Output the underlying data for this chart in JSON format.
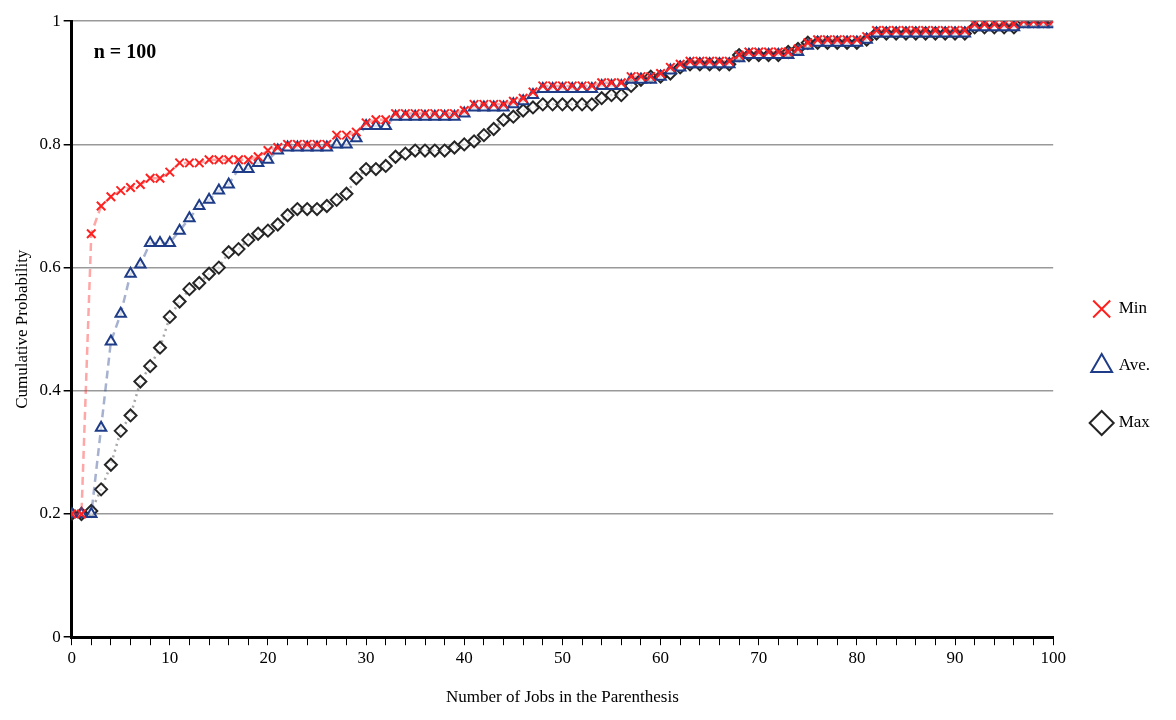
{
  "chart_data": {
    "type": "line",
    "xlabel": "Number of Jobs in the Parenthesis",
    "ylabel": "Cumulative Probability",
    "annotations": [
      "n = 100"
    ],
    "x": [
      0,
      1,
      2,
      3,
      4,
      5,
      6,
      7,
      8,
      9,
      10,
      11,
      12,
      13,
      14,
      15,
      16,
      17,
      18,
      19,
      20,
      21,
      22,
      23,
      24,
      25,
      26,
      27,
      28,
      29,
      30,
      31,
      32,
      33,
      34,
      35,
      36,
      37,
      38,
      39,
      40,
      41,
      42,
      43,
      44,
      45,
      46,
      47,
      48,
      49,
      50,
      51,
      52,
      53,
      54,
      55,
      56,
      57,
      58,
      59,
      60,
      61,
      62,
      63,
      64,
      65,
      66,
      67,
      68,
      69,
      70,
      71,
      72,
      73,
      74,
      75,
      76,
      77,
      78,
      79,
      80,
      81,
      82,
      83,
      84,
      85,
      86,
      87,
      88,
      89,
      90,
      91,
      92,
      93,
      94,
      95,
      96,
      97,
      98,
      99,
      100
    ],
    "series": [
      {
        "name": "Min",
        "color": "#ff2020",
        "marker": "cross",
        "line_style": "dashed",
        "values": [
          0.2,
          0.2,
          0.655,
          0.7,
          0.715,
          0.725,
          0.73,
          0.735,
          0.745,
          0.745,
          0.755,
          0.77,
          0.77,
          0.77,
          0.775,
          0.775,
          0.775,
          0.775,
          0.775,
          0.78,
          0.79,
          0.795,
          0.8,
          0.8,
          0.8,
          0.8,
          0.8,
          0.815,
          0.815,
          0.82,
          0.835,
          0.84,
          0.84,
          0.85,
          0.85,
          0.85,
          0.85,
          0.85,
          0.85,
          0.85,
          0.855,
          0.865,
          0.865,
          0.865,
          0.865,
          0.87,
          0.875,
          0.885,
          0.895,
          0.895,
          0.895,
          0.895,
          0.895,
          0.895,
          0.9,
          0.9,
          0.9,
          0.91,
          0.91,
          0.91,
          0.915,
          0.925,
          0.93,
          0.935,
          0.935,
          0.935,
          0.935,
          0.935,
          0.945,
          0.95,
          0.95,
          0.95,
          0.95,
          0.95,
          0.955,
          0.965,
          0.97,
          0.97,
          0.97,
          0.97,
          0.97,
          0.975,
          0.985,
          0.985,
          0.985,
          0.985,
          0.985,
          0.985,
          0.985,
          0.985,
          0.985,
          0.985,
          0.995,
          0.995,
          0.995,
          0.995,
          0.995,
          1.0,
          1.0,
          1.0,
          1.0
        ]
      },
      {
        "name": "Ave.",
        "color": "#1f3c88",
        "marker": "triangle",
        "line_style": "dashed",
        "values": [
          0.2,
          0.2,
          0.2,
          0.34,
          0.48,
          0.525,
          0.59,
          0.605,
          0.64,
          0.64,
          0.64,
          0.66,
          0.68,
          0.7,
          0.71,
          0.725,
          0.735,
          0.76,
          0.76,
          0.77,
          0.775,
          0.79,
          0.795,
          0.795,
          0.795,
          0.795,
          0.795,
          0.8,
          0.8,
          0.81,
          0.83,
          0.83,
          0.83,
          0.845,
          0.845,
          0.845,
          0.845,
          0.845,
          0.845,
          0.845,
          0.85,
          0.86,
          0.86,
          0.86,
          0.86,
          0.865,
          0.87,
          0.88,
          0.89,
          0.89,
          0.89,
          0.89,
          0.89,
          0.89,
          0.895,
          0.895,
          0.895,
          0.905,
          0.905,
          0.905,
          0.91,
          0.92,
          0.925,
          0.93,
          0.93,
          0.93,
          0.93,
          0.93,
          0.94,
          0.945,
          0.945,
          0.945,
          0.945,
          0.945,
          0.95,
          0.96,
          0.965,
          0.965,
          0.965,
          0.965,
          0.965,
          0.97,
          0.98,
          0.98,
          0.98,
          0.98,
          0.98,
          0.98,
          0.98,
          0.98,
          0.98,
          0.98,
          0.99,
          0.99,
          0.99,
          0.99,
          0.99,
          0.995,
          0.995,
          0.995,
          0.995
        ]
      },
      {
        "name": "Max",
        "color": "#262626",
        "marker": "diamond",
        "line_style": "dotted",
        "values": [
          0.2,
          0.2,
          0.205,
          0.24,
          0.28,
          0.335,
          0.36,
          0.415,
          0.44,
          0.47,
          0.52,
          0.545,
          0.565,
          0.575,
          0.59,
          0.6,
          0.625,
          0.63,
          0.645,
          0.655,
          0.66,
          0.67,
          0.685,
          0.695,
          0.695,
          0.695,
          0.7,
          0.71,
          0.72,
          0.745,
          0.76,
          0.76,
          0.765,
          0.78,
          0.785,
          0.79,
          0.79,
          0.79,
          0.79,
          0.795,
          0.8,
          0.805,
          0.815,
          0.825,
          0.84,
          0.845,
          0.855,
          0.86,
          0.865,
          0.865,
          0.865,
          0.865,
          0.865,
          0.865,
          0.875,
          0.88,
          0.88,
          0.895,
          0.905,
          0.91,
          0.91,
          0.915,
          0.925,
          0.93,
          0.93,
          0.93,
          0.93,
          0.93,
          0.945,
          0.945,
          0.945,
          0.945,
          0.945,
          0.95,
          0.955,
          0.965,
          0.965,
          0.965,
          0.965,
          0.965,
          0.965,
          0.97,
          0.98,
          0.98,
          0.98,
          0.98,
          0.98,
          0.98,
          0.98,
          0.98,
          0.98,
          0.98,
          0.99,
          0.99,
          0.99,
          0.99,
          0.99,
          1.0,
          1.0,
          1.0,
          1.0
        ]
      }
    ],
    "xlim": [
      0,
      100
    ],
    "xticks": [
      0,
      {
        "value": 2,
        "label": null
      },
      {
        "value": 4,
        "label": null
      },
      {
        "value": 6,
        "label": null
      },
      {
        "value": 8,
        "label": null
      },
      10,
      {
        "value": 12,
        "label": null
      },
      {
        "value": 14,
        "label": null
      },
      {
        "value": 16,
        "label": null
      },
      {
        "value": 18,
        "label": null
      },
      20,
      {
        "value": 22,
        "label": null
      },
      {
        "value": 24,
        "label": null
      },
      {
        "value": 26,
        "label": null
      },
      {
        "value": 28,
        "label": null
      },
      30,
      {
        "value": 32,
        "label": null
      },
      {
        "value": 34,
        "label": null
      },
      {
        "value": 36,
        "label": null
      },
      {
        "value": 38,
        "label": null
      },
      40,
      {
        "value": 42,
        "label": null
      },
      {
        "value": 44,
        "label": null
      },
      {
        "value": 46,
        "label": null
      },
      {
        "value": 48,
        "label": null
      },
      50,
      {
        "value": 52,
        "label": null
      },
      {
        "value": 54,
        "label": null
      },
      {
        "value": 56,
        "label": null
      },
      {
        "value": 58,
        "label": null
      },
      60,
      {
        "value": 62,
        "label": null
      },
      {
        "value": 64,
        "label": null
      },
      {
        "value": 66,
        "label": null
      },
      {
        "value": 68,
        "label": null
      },
      70,
      {
        "value": 72,
        "label": null
      },
      {
        "value": 74,
        "label": null
      },
      {
        "value": 76,
        "label": null
      },
      {
        "value": 78,
        "label": null
      },
      80,
      {
        "value": 82,
        "label": null
      },
      {
        "value": 84,
        "label": null
      },
      {
        "value": 86,
        "label": null
      },
      {
        "value": 88,
        "label": null
      },
      90,
      {
        "value": 92,
        "label": null
      },
      {
        "value": 94,
        "label": null
      },
      {
        "value": 96,
        "label": null
      },
      {
        "value": 98,
        "label": null
      },
      100
    ],
    "ylim": [
      0,
      1
    ],
    "yticks": [
      0,
      0.2,
      0.4,
      0.6,
      0.8,
      1
    ],
    "grid": "y",
    "legend": "right"
  }
}
